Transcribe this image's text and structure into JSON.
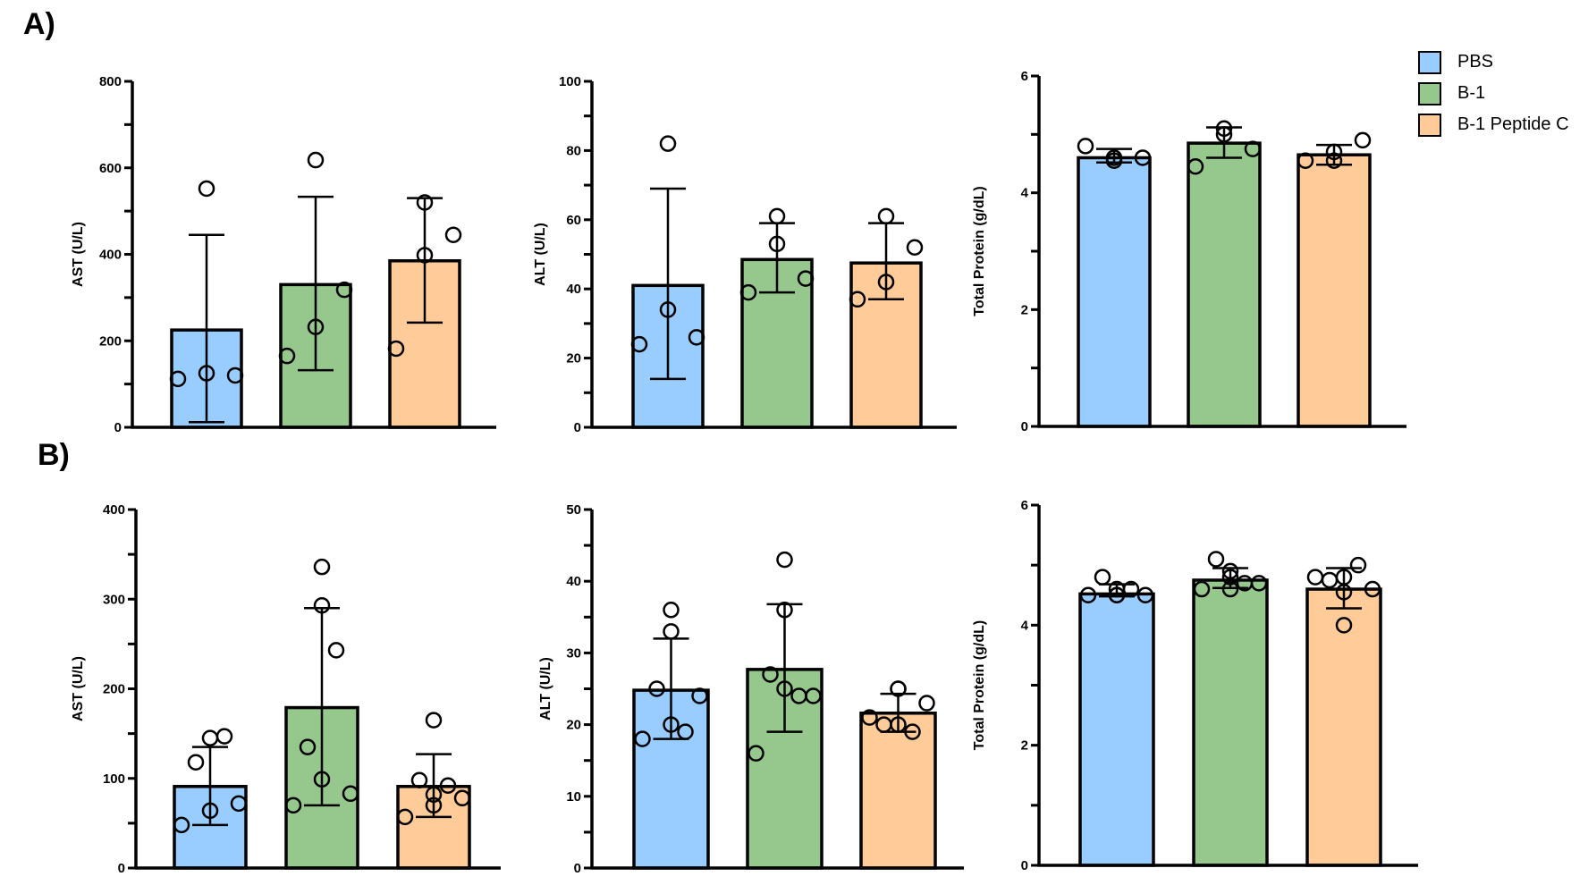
{
  "panels": {
    "a_label": "A)",
    "b_label": "B)"
  },
  "legend": [
    {
      "label": "PBS",
      "color": "#99ccff"
    },
    {
      "label": "B-1",
      "color": "#96c78c"
    },
    {
      "label": "B-1 Peptide C",
      "color": "#ffcc99"
    }
  ],
  "chart_data": [
    {
      "id": "A-AST",
      "panel": "A",
      "type": "bar",
      "ylabel": "AST (U/L)",
      "ylim": [
        0,
        800
      ],
      "yticks": [
        0,
        200,
        400,
        600,
        800
      ],
      "minor_step": 100,
      "categories": [
        "PBS",
        "B-1",
        "B-1 Peptide C"
      ],
      "values": [
        225,
        330,
        385
      ],
      "error": [
        [
          12,
          445
        ],
        [
          132,
          533
        ],
        [
          242,
          530
        ]
      ],
      "points": [
        [
          112,
          125,
          120,
          552
        ],
        [
          165,
          232,
          318,
          618
        ],
        [
          182,
          398,
          445,
          520
        ]
      ]
    },
    {
      "id": "A-ALT",
      "panel": "A",
      "type": "bar",
      "ylabel": "ALT (U/L)",
      "ylim": [
        0,
        100
      ],
      "yticks": [
        0,
        20,
        40,
        60,
        80,
        100
      ],
      "minor_step": 10,
      "categories": [
        "PBS",
        "B-1",
        "B-1 Peptide C"
      ],
      "values": [
        41,
        48.5,
        47.5
      ],
      "error": [
        [
          14,
          69
        ],
        [
          39,
          59
        ],
        [
          37,
          59
        ]
      ],
      "points": [
        [
          24,
          34,
          26,
          82
        ],
        [
          39,
          53,
          43,
          61
        ],
        [
          37,
          42,
          52,
          61
        ]
      ]
    },
    {
      "id": "A-TP",
      "panel": "A",
      "type": "bar",
      "ylabel": "Total Protein (g/dL)",
      "ylim": [
        0,
        6
      ],
      "yticks": [
        0,
        2,
        4,
        6
      ],
      "minor_step": 1,
      "categories": [
        "PBS",
        "B-1",
        "B-1 Peptide C"
      ],
      "values": [
        4.6,
        4.85,
        4.65
      ],
      "error": [
        [
          4.52,
          4.75
        ],
        [
          4.6,
          5.12
        ],
        [
          4.48,
          4.82
        ]
      ],
      "points": [
        [
          4.8,
          4.55,
          4.6,
          4.6
        ],
        [
          4.45,
          5.0,
          4.75,
          5.1
        ],
        [
          4.55,
          4.7,
          4.9,
          4.55
        ]
      ]
    },
    {
      "id": "B-AST",
      "panel": "B",
      "type": "bar",
      "ylabel": "AST (U/L)",
      "ylim": [
        0,
        400
      ],
      "yticks": [
        0,
        100,
        200,
        300,
        400
      ],
      "minor_step": 50,
      "categories": [
        "PBS",
        "B-1",
        "B-1 Peptide C"
      ],
      "values": [
        91,
        179,
        91
      ],
      "error": [
        [
          48,
          135
        ],
        [
          70,
          290
        ],
        [
          57,
          127
        ]
      ],
      "points": [
        [
          48,
          64,
          72,
          118,
          147,
          145
        ],
        [
          70,
          99,
          83,
          135,
          243,
          293,
          336
        ],
        [
          57,
          82,
          78,
          98,
          92,
          165,
          70
        ]
      ]
    },
    {
      "id": "B-ALT",
      "panel": "B",
      "type": "bar",
      "ylabel": "ALT (U/L)",
      "ylim": [
        0,
        50
      ],
      "yticks": [
        0,
        10,
        20,
        30,
        40,
        50
      ],
      "minor_step": 5,
      "categories": [
        "PBS",
        "B-1",
        "B-1 Peptide C"
      ],
      "values": [
        24.8,
        27.7,
        21.6
      ],
      "error": [
        [
          18,
          32
        ],
        [
          19,
          36.8
        ],
        [
          19,
          24.3
        ]
      ],
      "points": [
        [
          18,
          20,
          24,
          25,
          19,
          33,
          36
        ],
        [
          16,
          25,
          24,
          27,
          24,
          36,
          43
        ],
        [
          21,
          25,
          23,
          20,
          19,
          20,
          25
        ]
      ]
    },
    {
      "id": "B-TP",
      "panel": "B",
      "type": "bar",
      "ylabel": "Total Protein (g/dL)",
      "ylim": [
        0,
        6
      ],
      "yticks": [
        0,
        2,
        4,
        6
      ],
      "minor_step": 1,
      "categories": [
        "PBS",
        "B-1",
        "B-1 Peptide C"
      ],
      "values": [
        4.52,
        4.75,
        4.6
      ],
      "error": [
        [
          4.48,
          4.68
        ],
        [
          4.62,
          4.95
        ],
        [
          4.28,
          4.95
        ]
      ],
      "points": [
        [
          4.5,
          4.6,
          4.5,
          4.8,
          4.6,
          4.5,
          4.5
        ],
        [
          4.6,
          4.8,
          4.7,
          5.1,
          4.7,
          4.9,
          4.6
        ],
        [
          4.8,
          4.55,
          4.6,
          4.75,
          5.0,
          4.0,
          4.8
        ]
      ]
    }
  ]
}
